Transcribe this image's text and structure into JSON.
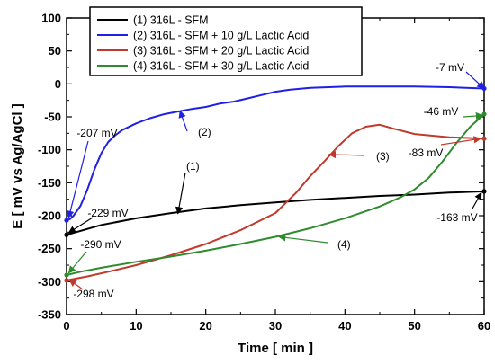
{
  "chart_data": {
    "type": "line",
    "xlabel": "Time [ min ]",
    "ylabel": "E [ mV vs Ag/AgCl ]",
    "xlim": [
      0,
      60
    ],
    "ylim": [
      -350,
      100
    ],
    "xticks": [
      "0",
      "10",
      "20",
      "30",
      "40",
      "50",
      "60"
    ],
    "yticks": [
      "100",
      "50",
      "0",
      "-50",
      "-100",
      "-150",
      "-200",
      "-250",
      "-300",
      "-350"
    ],
    "grid": false,
    "legend_position": "top-center",
    "series": [
      {
        "name": "(1) 316L - SFM",
        "color": "#000000",
        "x": [
          0,
          5,
          10,
          15,
          20,
          25,
          30,
          35,
          40,
          45,
          50,
          55,
          60
        ],
        "y": [
          -229,
          -214,
          -204,
          -196,
          -189,
          -184,
          -180,
          -176,
          -173,
          -170,
          -168,
          -165,
          -163
        ]
      },
      {
        "name": "(2) 316L - SFM + 10 g/L Lactic Acid",
        "color": "#1f1fe6",
        "x": [
          0,
          0.5,
          1,
          2,
          3,
          4,
          5,
          6,
          7,
          8,
          10,
          12,
          14,
          16,
          18,
          20,
          22,
          24,
          26,
          28,
          30,
          32,
          35,
          40,
          45,
          50,
          55,
          60
        ],
        "y": [
          -207,
          -205,
          -200,
          -185,
          -160,
          -130,
          -105,
          -88,
          -78,
          -70,
          -60,
          -52,
          -46,
          -42,
          -38,
          -35,
          -30,
          -27,
          -22,
          -17,
          -12,
          -9,
          -6,
          -4,
          -4,
          -4,
          -5,
          -7
        ]
      },
      {
        "name": "(3) 316L - SFM + 20 g/L Lactic Acid",
        "color": "#c0392b",
        "x": [
          0,
          3,
          6,
          10,
          15,
          20,
          25,
          30,
          33,
          35,
          37,
          39,
          41,
          43,
          45,
          47,
          50,
          55,
          60
        ],
        "y": [
          -298,
          -292,
          -285,
          -275,
          -260,
          -243,
          -222,
          -196,
          -165,
          -140,
          -118,
          -95,
          -75,
          -65,
          -62,
          -68,
          -76,
          -81,
          -83
        ]
      },
      {
        "name": "(4) 316L - SFM + 30 g/L Lactic Acid",
        "color": "#2e8b2e",
        "x": [
          0,
          2,
          5,
          10,
          15,
          20,
          25,
          30,
          35,
          40,
          45,
          48,
          50,
          52,
          54,
          56,
          58,
          60
        ],
        "y": [
          -290,
          -285,
          -279,
          -270,
          -262,
          -253,
          -243,
          -232,
          -219,
          -204,
          -186,
          -172,
          -160,
          -143,
          -118,
          -90,
          -65,
          -46
        ]
      }
    ],
    "annotations": [
      {
        "text": "-7 mV",
        "series": 1
      },
      {
        "text": "-46 mV",
        "series": 3
      },
      {
        "text": "-83 mV",
        "series": 2
      },
      {
        "text": "-207 mV",
        "series": 1
      },
      {
        "text": "-229 mV",
        "series": 0
      },
      {
        "text": "-290 mV",
        "series": 3
      },
      {
        "text": "-298 mV",
        "series": 2
      },
      {
        "text": "-163 mV",
        "series": 0
      }
    ],
    "curve_labels": [
      "(1)",
      "(2)",
      "(3)",
      "(4)"
    ]
  }
}
